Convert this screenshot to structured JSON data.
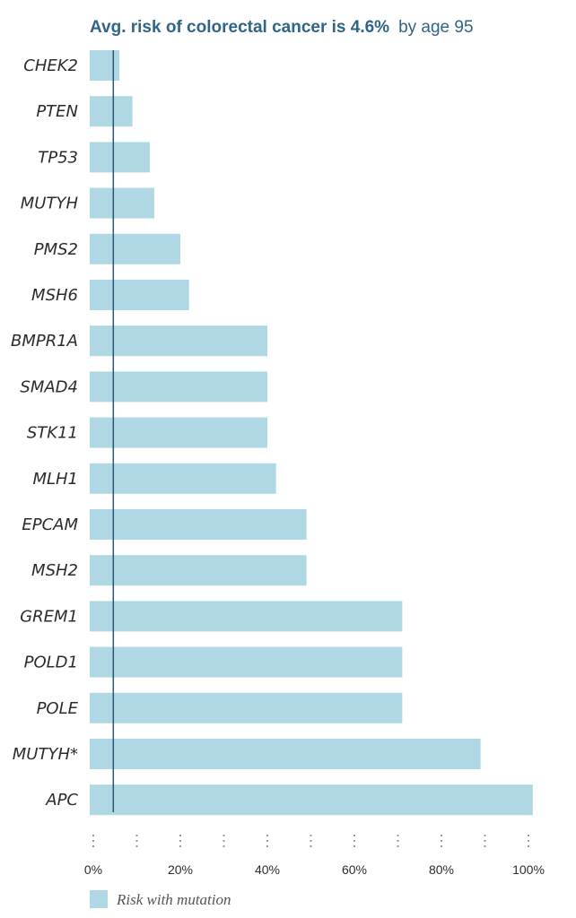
{
  "chart_data": {
    "type": "bar",
    "orientation": "horizontal",
    "title_main": "Avg. risk of colorectal cancer is 4.6%",
    "title_suffix": "by age 95",
    "categories": [
      "CHEK2",
      "PTEN",
      "TP53",
      "MUTYH",
      "PMS2",
      "MSH6",
      "BMPR1A",
      "SMAD4",
      "STK11",
      "MLH1",
      "EPCAM",
      "MSH2",
      "GREM1",
      "POLD1",
      "POLE",
      "MUTYH*",
      "APC"
    ],
    "series": [
      {
        "name": "Risk with mutation",
        "values": [
          6,
          9,
          13,
          14,
          20,
          22,
          40,
          40,
          40,
          42,
          49,
          49,
          71,
          71,
          71,
          89,
          101
        ],
        "color": "#b0d8e4"
      }
    ],
    "reference_line": {
      "value": 4.6,
      "color": "#2b5570"
    },
    "ticks": [
      0,
      20,
      40,
      60,
      80,
      100
    ],
    "tick_labels": [
      "0%",
      "20%",
      "40%",
      "60%",
      "80%",
      "100%"
    ],
    "xlim": [
      0,
      100
    ],
    "grid": false,
    "legend_position": "bottom-left",
    "colors": {
      "title": "#2f6586",
      "bar": "#b0d8e4",
      "reference": "#2b5570"
    }
  }
}
